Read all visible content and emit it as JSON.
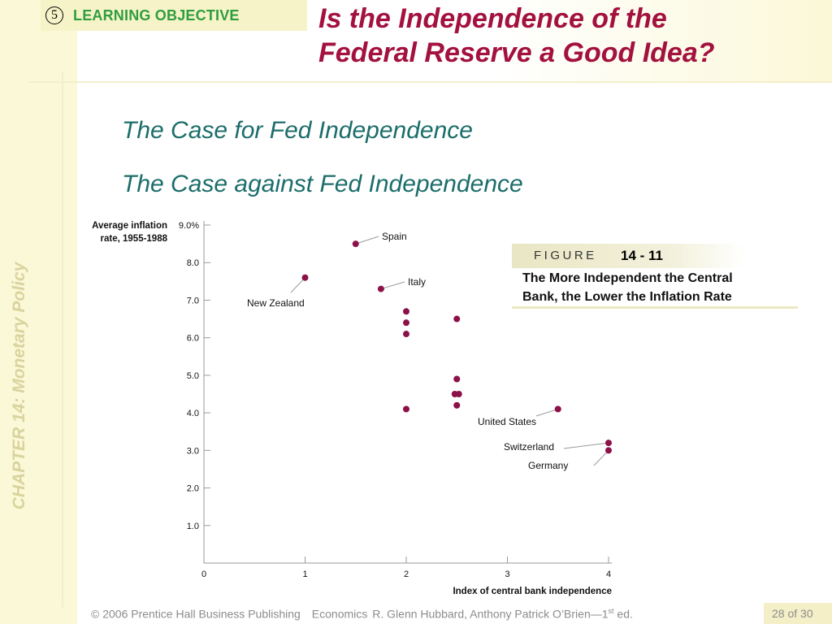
{
  "learning_objective": {
    "number": "5",
    "label": "LEARNING OBJECTIVE"
  },
  "title": {
    "line1": "Is the Independence of the",
    "line2": "Federal Reserve a Good Idea?"
  },
  "bullets": [
    "The Case for Fed Independence",
    "The Case against Fed Independence"
  ],
  "sidebar": {
    "chapter": "CHAPTER 14:  Monetary Policy"
  },
  "figure": {
    "label": "FIGURE",
    "number": "14 - 11",
    "caption_line1": "The More Independent the Central",
    "caption_line2": "Bank, the Lower the Inflation Rate"
  },
  "footer": {
    "copyright": "© 2006 Prentice Hall Business Publishing",
    "book": "Economics",
    "authors": "R. Glenn Hubbard, Anthony Patrick O’Brien—1",
    "edition_sup": "st",
    "edition_suffix": " ed.",
    "page": "28 of 30"
  },
  "colors": {
    "title": "#a3113f",
    "bullet": "#1b6d6a",
    "objective": "#2f9e3e",
    "marker": "#8c1148",
    "sidebar_text": "#d9d39d"
  },
  "chart_data": {
    "type": "scatter",
    "ylabel_line1": "Average inflation",
    "ylabel_line2": "rate, 1955-1988",
    "xlabel": "Index of central bank independence",
    "xlim": [
      0,
      4
    ],
    "ylim": [
      0,
      9
    ],
    "x_ticks": [
      "0",
      "1",
      "2",
      "3",
      "4"
    ],
    "y_ticks": [
      {
        "v": 1,
        "label": "1.0"
      },
      {
        "v": 2,
        "label": "2.0"
      },
      {
        "v": 3,
        "label": "3.0"
      },
      {
        "v": 4,
        "label": "4.0"
      },
      {
        "v": 5,
        "label": "5.0"
      },
      {
        "v": 6,
        "label": "6.0"
      },
      {
        "v": 7,
        "label": "7.0"
      },
      {
        "v": 8,
        "label": "8.0"
      },
      {
        "v": 9,
        "label": "9.0%"
      }
    ],
    "grid": false,
    "points": [
      {
        "x": 1.0,
        "y": 7.6,
        "label": "New Zealand"
      },
      {
        "x": 1.5,
        "y": 8.5,
        "label": "Spain"
      },
      {
        "x": 1.75,
        "y": 7.3,
        "label": "Italy"
      },
      {
        "x": 2.0,
        "y": 6.7
      },
      {
        "x": 2.0,
        "y": 6.4
      },
      {
        "x": 2.0,
        "y": 6.1
      },
      {
        "x": 2.0,
        "y": 4.1
      },
      {
        "x": 2.5,
        "y": 6.5
      },
      {
        "x": 2.5,
        "y": 4.9
      },
      {
        "x": 2.48,
        "y": 4.5
      },
      {
        "x": 2.52,
        "y": 4.5
      },
      {
        "x": 2.5,
        "y": 4.2
      },
      {
        "x": 3.5,
        "y": 4.1,
        "label": "United States"
      },
      {
        "x": 4.0,
        "y": 3.2,
        "label": "Switzerland"
      },
      {
        "x": 4.0,
        "y": 3.0,
        "label": "Germany"
      }
    ]
  }
}
